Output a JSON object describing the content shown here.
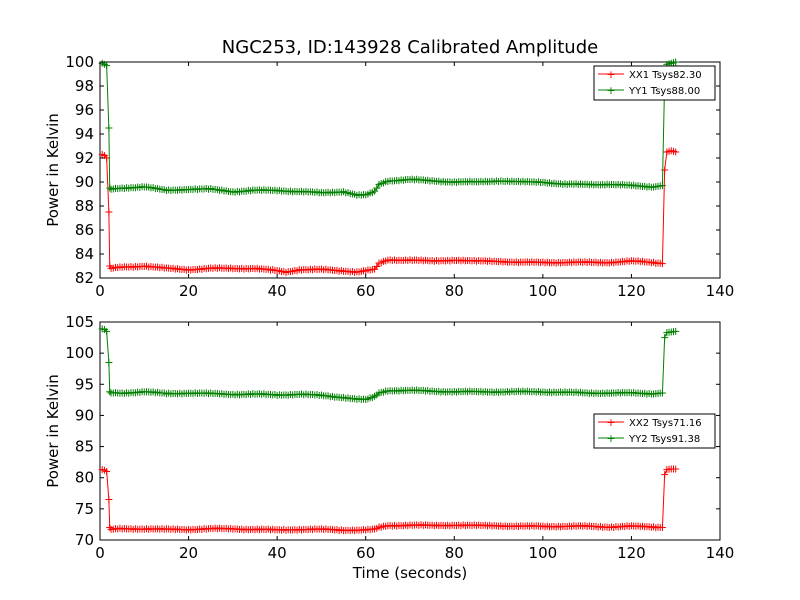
{
  "title": "NGC253, ID:143928 Calibrated Amplitude",
  "colors": {
    "xx": "#ff0000",
    "yy": "#008000",
    "axes": "#000000",
    "background": "#ffffff"
  },
  "chart_data": [
    {
      "type": "line",
      "xlabel": "",
      "ylabel": "Power in Kelvin",
      "xlim": [
        0,
        140
      ],
      "ylim": [
        82,
        100
      ],
      "xticks": [
        "0",
        "20",
        "40",
        "60",
        "80",
        "100",
        "120",
        "140"
      ],
      "yticks": [
        "82",
        "84",
        "86",
        "88",
        "90",
        "92",
        "94",
        "96",
        "98",
        "100"
      ],
      "legend_position": "top-right",
      "series": [
        {
          "name": "XX1 Tsys82.30",
          "color": "#ff0000",
          "x": [
            0.5,
            1,
            1.5,
            2,
            2.2,
            2.5,
            5,
            10,
            15,
            20,
            25,
            30,
            35,
            40,
            42,
            45,
            50,
            55,
            58,
            60,
            62,
            63,
            65,
            70,
            75,
            80,
            85,
            90,
            95,
            100,
            105,
            110,
            115,
            120,
            125,
            127,
            127.5,
            128,
            129,
            130
          ],
          "values": [
            92.3,
            92.2,
            92.0,
            87.5,
            83.0,
            82.8,
            82.9,
            83.0,
            82.8,
            82.7,
            82.8,
            82.8,
            82.8,
            82.6,
            82.5,
            82.7,
            82.7,
            82.6,
            82.5,
            82.6,
            82.7,
            83.2,
            83.5,
            83.5,
            83.4,
            83.5,
            83.4,
            83.4,
            83.3,
            83.3,
            83.3,
            83.3,
            83.3,
            83.4,
            83.3,
            83.2,
            91.0,
            92.5,
            92.6,
            92.5
          ]
        },
        {
          "name": "YY1 Tsys88.00",
          "color": "#008000",
          "x": [
            0.5,
            1,
            1.5,
            2,
            2.2,
            2.5,
            5,
            10,
            15,
            20,
            25,
            30,
            35,
            40,
            45,
            50,
            55,
            58,
            60,
            62,
            63,
            65,
            70,
            75,
            80,
            85,
            90,
            95,
            100,
            105,
            110,
            115,
            120,
            125,
            127,
            127.5,
            128,
            129,
            130
          ],
          "values": [
            99.9,
            99.8,
            99.7,
            94.5,
            89.5,
            89.4,
            89.5,
            89.6,
            89.3,
            89.4,
            89.4,
            89.2,
            89.3,
            89.3,
            89.2,
            89.1,
            89.2,
            88.9,
            88.9,
            89.2,
            89.8,
            90.1,
            90.2,
            90.1,
            90.0,
            90.0,
            90.1,
            90.0,
            90.0,
            89.8,
            89.8,
            89.8,
            89.7,
            89.6,
            89.7,
            98.5,
            99.8,
            99.9,
            100.0
          ]
        }
      ]
    },
    {
      "type": "line",
      "xlabel": "Time (seconds)",
      "ylabel": "Power in Kelvin",
      "xlim": [
        0,
        140
      ],
      "ylim": [
        70,
        105
      ],
      "xticks": [
        "0",
        "20",
        "40",
        "60",
        "80",
        "100",
        "120",
        "140"
      ],
      "yticks": [
        "70",
        "75",
        "80",
        "85",
        "90",
        "95",
        "100",
        "105"
      ],
      "legend_position": "center-right",
      "series": [
        {
          "name": "XX2 Tsys71.16",
          "color": "#ff0000",
          "x": [
            0.5,
            1,
            1.5,
            2,
            2.2,
            2.5,
            5,
            10,
            15,
            20,
            25,
            30,
            35,
            40,
            45,
            50,
            55,
            60,
            62,
            63,
            65,
            70,
            75,
            80,
            85,
            90,
            95,
            100,
            105,
            110,
            115,
            120,
            125,
            127,
            127.5,
            128,
            129,
            130
          ],
          "values": [
            81.3,
            81.2,
            81.0,
            76.5,
            72.0,
            71.7,
            71.8,
            71.8,
            71.7,
            71.7,
            71.8,
            71.8,
            71.7,
            71.6,
            71.7,
            71.7,
            71.6,
            71.6,
            71.7,
            72.0,
            72.3,
            72.4,
            72.3,
            72.4,
            72.3,
            72.3,
            72.2,
            72.2,
            72.2,
            72.2,
            72.1,
            72.2,
            72.1,
            72.0,
            80.5,
            81.3,
            81.4,
            81.4
          ]
        },
        {
          "name": "YY2 Tsys91.38",
          "color": "#008000",
          "x": [
            0.5,
            1,
            1.5,
            2,
            2.2,
            2.5,
            5,
            10,
            15,
            20,
            25,
            30,
            35,
            40,
            45,
            50,
            55,
            58,
            60,
            62,
            63,
            65,
            70,
            75,
            80,
            85,
            90,
            95,
            100,
            105,
            110,
            115,
            120,
            125,
            127,
            127.5,
            128,
            129,
            130
          ],
          "values": [
            103.9,
            103.8,
            103.5,
            98.5,
            93.8,
            93.6,
            93.6,
            93.8,
            93.5,
            93.6,
            93.5,
            93.4,
            93.4,
            93.3,
            93.4,
            93.2,
            92.9,
            92.6,
            92.5,
            93.0,
            93.6,
            94.0,
            94.0,
            93.9,
            93.8,
            93.8,
            93.8,
            93.8,
            93.8,
            93.7,
            93.6,
            93.6,
            93.6,
            93.5,
            93.6,
            102.5,
            103.3,
            103.4,
            103.5
          ]
        }
      ]
    }
  ]
}
